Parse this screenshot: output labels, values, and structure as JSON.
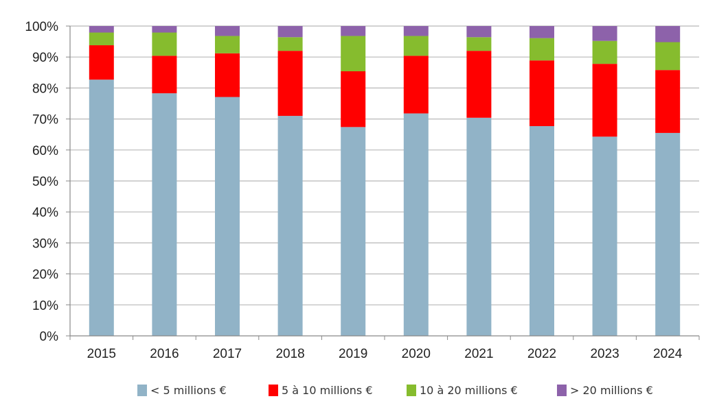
{
  "chart_data": {
    "type": "bar",
    "stacked": true,
    "title": "",
    "xlabel": "",
    "ylabel": "",
    "ylim": [
      0,
      100
    ],
    "yticks": [
      "0%",
      "10%",
      "20%",
      "30%",
      "40%",
      "50%",
      "60%",
      "70%",
      "80%",
      "90%",
      "100%"
    ],
    "grid": true,
    "legend_position": "bottom",
    "categories": [
      "2015",
      "2016",
      "2017",
      "2018",
      "2019",
      "2020",
      "2021",
      "2022",
      "2023",
      "2024"
    ],
    "series": [
      {
        "name": "< 5 millions €",
        "color": "#91B3C7",
        "values": [
          82.7,
          78.3,
          77.1,
          71.0,
          67.4,
          71.8,
          70.4,
          67.7,
          64.3,
          65.5
        ]
      },
      {
        "name": "5 à 10 millions €",
        "color": "#FF0000",
        "values": [
          11.1,
          12.1,
          14.1,
          21.0,
          18.0,
          18.6,
          21.6,
          21.2,
          23.5,
          20.3
        ]
      },
      {
        "name": "10 à 20 millions €",
        "color": "#86BC2E",
        "values": [
          4.1,
          7.5,
          5.6,
          4.4,
          11.4,
          6.4,
          4.4,
          7.2,
          7.4,
          9.0
        ]
      },
      {
        "name": "> 20 millions €",
        "color": "#8D62AA",
        "values": [
          2.1,
          2.1,
          3.2,
          3.6,
          3.2,
          3.2,
          3.6,
          3.9,
          4.8,
          5.2
        ]
      }
    ]
  }
}
